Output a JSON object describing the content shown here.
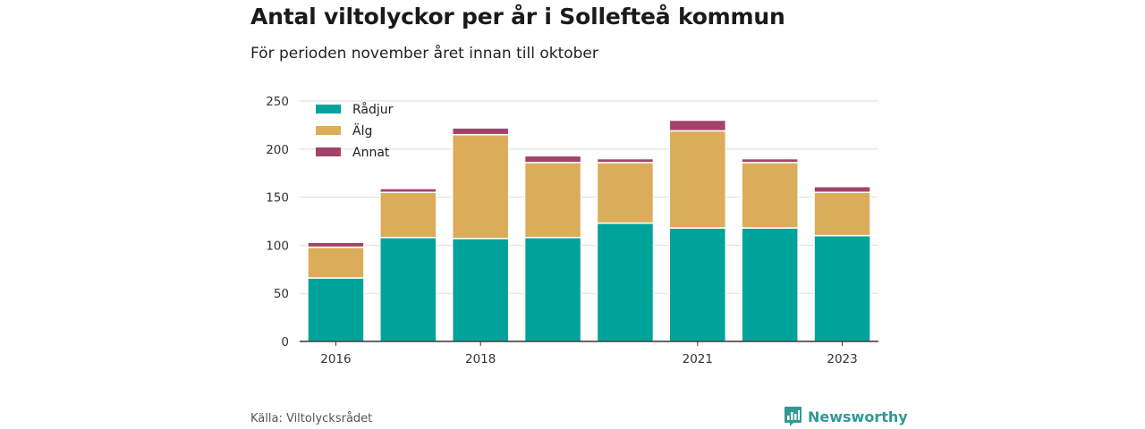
{
  "header": {
    "title": "Antal viltolyckor per år i Sollefteå kommun",
    "subtitle": "För perioden november året innan till oktober"
  },
  "footer": {
    "source": "Källa: Viltolycksrådet",
    "brand": "Newsworthy",
    "brand_icon": "bar-chart-speech-bubble-icon"
  },
  "colors": {
    "Rådjur": "#00a39a",
    "Älg": "#dbad5a",
    "Annat": "#a3426a",
    "grid": "#dddddd",
    "axis": "#333333",
    "brand": "#2f9a93"
  },
  "chart_data": {
    "type": "bar",
    "stacked": true,
    "categories": [
      "2016",
      "2017",
      "2018",
      "2019",
      "2020",
      "2021",
      "2022",
      "2023"
    ],
    "x_tick_labels": [
      "2016",
      "",
      "2018",
      "",
      "",
      "2021",
      "",
      "2023"
    ],
    "series": [
      {
        "name": "Rådjur",
        "values": [
          66,
          108,
          107,
          108,
          123,
          118,
          118,
          110
        ]
      },
      {
        "name": "Älg",
        "values": [
          32,
          47,
          108,
          78,
          63,
          101,
          68,
          45
        ]
      },
      {
        "name": "Annat",
        "values": [
          5,
          4,
          7,
          7,
          4,
          11,
          4,
          6
        ]
      }
    ],
    "y_ticks": [
      0,
      50,
      100,
      150,
      200,
      250
    ],
    "ylim": [
      0,
      250
    ],
    "grid": true,
    "legend_position": "top-left"
  }
}
